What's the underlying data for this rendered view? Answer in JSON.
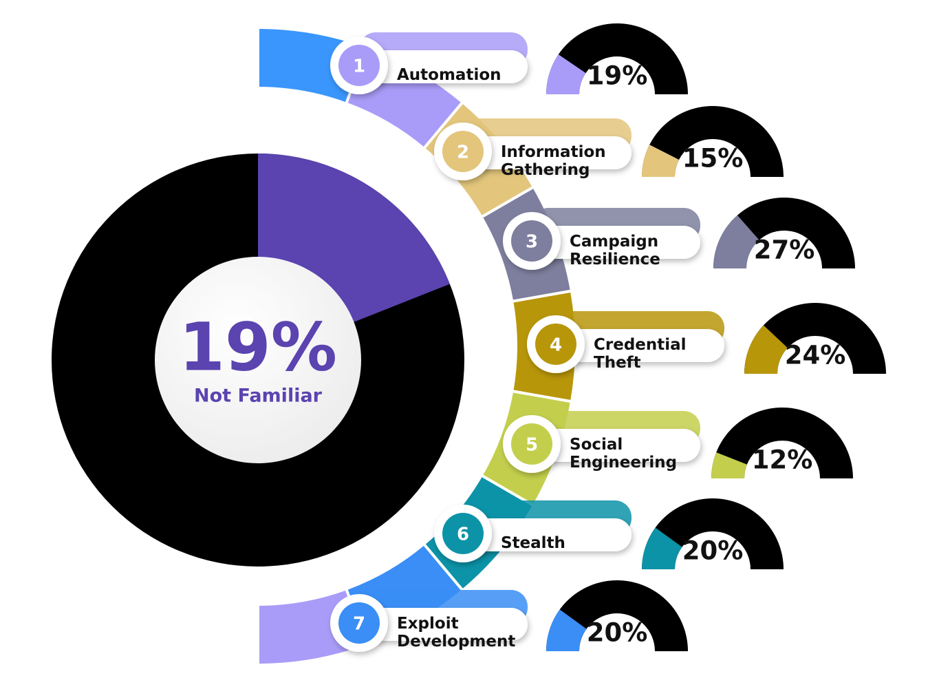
{
  "chart_data": [
    {
      "type": "donut",
      "values": [
        19
      ],
      "value_labels": [
        "19%"
      ],
      "label": "Not Familiar",
      "color": "#5b43b0",
      "rest_color": "#000000"
    },
    {
      "type": "gauge",
      "numbers": [
        "1",
        "2",
        "3",
        "4",
        "5",
        "6",
        "7"
      ],
      "categories": [
        "Automation",
        "Information Gathering",
        "Campaign Resilience",
        "Credential Theft",
        "Social Engineering",
        "Stealth",
        "Exploit Development"
      ],
      "values": [
        19,
        15,
        27,
        24,
        12,
        20,
        20
      ],
      "value_labels": [
        "19%",
        "15%",
        "27%",
        "24%",
        "12%",
        "20%",
        "20%"
      ],
      "colors": [
        "#a99cf8",
        "#e3c67c",
        "#7e7f9e",
        "#b8960a",
        "#c3cf4c",
        "#0c93a8",
        "#3a8ef5"
      ],
      "track_color": "#000000"
    }
  ]
}
